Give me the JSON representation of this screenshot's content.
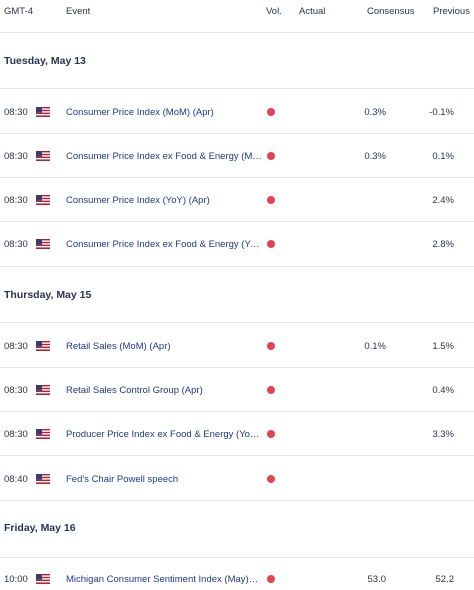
{
  "header": {
    "timezone": "GMT-4",
    "event": "Event",
    "vol": "Vol.",
    "actual": "Actual",
    "consensus": "Consensus",
    "previous": "Previous"
  },
  "colors": {
    "high_impact": "#e74155",
    "event_text": "#1d3a8a",
    "divider": "#e3e5ea"
  },
  "sections": [
    {
      "day": "Tuesday, May 13",
      "rows": [
        {
          "time": "08:30",
          "flag": "us-flag-icon",
          "event": "Consumer Price Index (MoM) (Apr)",
          "actual": "",
          "consensus": "0.3%",
          "previous": "-0.1%"
        },
        {
          "time": "08:30",
          "flag": "us-flag-icon",
          "event": "Consumer Price Index ex Food & Energy (MoM) (Apr)",
          "actual": "",
          "consensus": "0.3%",
          "previous": "0.1%"
        },
        {
          "time": "08:30",
          "flag": "us-flag-icon",
          "event": "Consumer Price Index (YoY) (Apr)",
          "actual": "",
          "consensus": "",
          "previous": "2.4%"
        },
        {
          "time": "08:30",
          "flag": "us-flag-icon",
          "event": "Consumer Price Index ex Food & Energy (YoY) (Apr)",
          "actual": "",
          "consensus": "",
          "previous": "2.8%"
        }
      ]
    },
    {
      "day": "Thursday, May 15",
      "rows": [
        {
          "time": "08:30",
          "flag": "us-flag-icon",
          "event": "Retail Sales (MoM) (Apr)",
          "actual": "",
          "consensus": "0.1%",
          "previous": "1.5%"
        },
        {
          "time": "08:30",
          "flag": "us-flag-icon",
          "event": "Retail Sales Control Group (Apr)",
          "actual": "",
          "consensus": "",
          "previous": "0.4%"
        },
        {
          "time": "08:30",
          "flag": "us-flag-icon",
          "event": "Producer Price Index ex Food & Energy (YoY) (Apr)",
          "actual": "",
          "consensus": "",
          "previous": "3.3%"
        },
        {
          "time": "08:40",
          "flag": "us-flag-icon",
          "event": "Fed's Chair Powell speech",
          "actual": "",
          "consensus": "",
          "previous": ""
        }
      ]
    },
    {
      "day": "Friday, May 16",
      "rows": [
        {
          "time": "10:00",
          "flag": "us-flag-icon",
          "event": "Michigan Consumer Sentiment Index (May)PREL",
          "actual": "",
          "consensus": "53.0",
          "previous": "52.2"
        }
      ]
    }
  ]
}
